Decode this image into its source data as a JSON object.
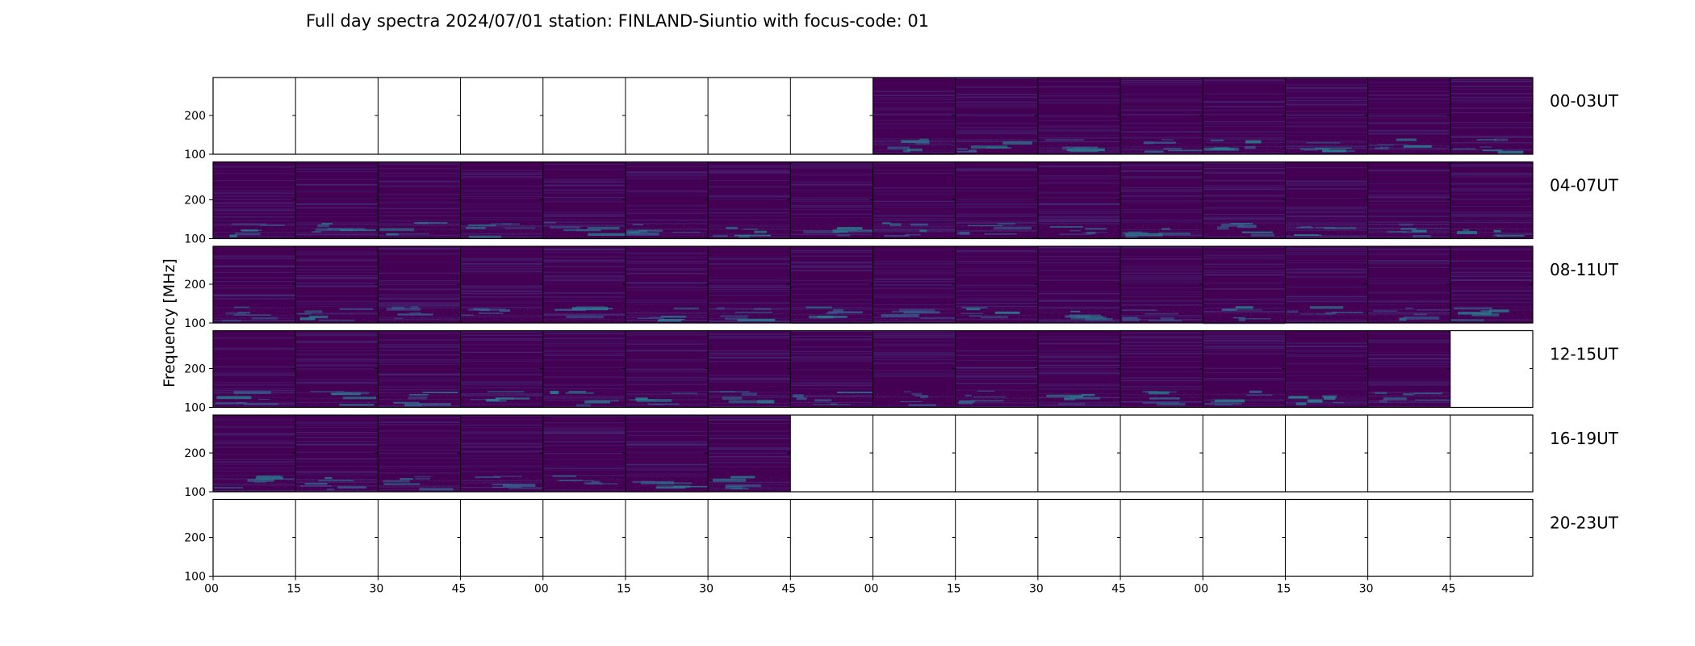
{
  "chart_data": {
    "type": "heatmap",
    "title": "Full day spectra 2024/07/01 station: FINLAND-Siuntio with focus-code: 01",
    "ylabel": "Frequency [MHz]",
    "y_ticks": [
      "200",
      "100"
    ],
    "x_ticks": [
      "00",
      "15",
      "30",
      "45",
      "00",
      "15",
      "30",
      "45",
      "00",
      "15",
      "30",
      "45",
      "00",
      "15",
      "30",
      "45"
    ],
    "colormap": [
      "#440154",
      "#46337e",
      "#365c8d",
      "#277f8e",
      "#1fa187",
      "#4ac16d"
    ],
    "panels_per_row": 16,
    "rows": [
      {
        "label": "00-03UT",
        "present": [
          0,
          0,
          0,
          0,
          0,
          0,
          0,
          0,
          1,
          1,
          1,
          1,
          1,
          1,
          1,
          1
        ]
      },
      {
        "label": "04-07UT",
        "present": [
          1,
          1,
          1,
          1,
          1,
          1,
          1,
          1,
          1,
          1,
          1,
          1,
          1,
          1,
          1,
          1
        ]
      },
      {
        "label": "08-11UT",
        "present": [
          1,
          1,
          1,
          1,
          1,
          1,
          1,
          1,
          1,
          1,
          1,
          1,
          1,
          1,
          1,
          1
        ]
      },
      {
        "label": "12-15UT",
        "present": [
          1,
          1,
          1,
          1,
          1,
          1,
          1,
          1,
          1,
          1,
          1,
          1,
          1,
          1,
          1,
          0
        ]
      },
      {
        "label": "16-19UT",
        "present": [
          1,
          1,
          1,
          1,
          1,
          1,
          1,
          0,
          0,
          0,
          0,
          0,
          0,
          0,
          0,
          0
        ]
      },
      {
        "label": "20-23UT",
        "present": [
          0,
          0,
          0,
          0,
          0,
          0,
          0,
          0,
          0,
          0,
          0,
          0,
          0,
          0,
          0,
          0
        ]
      }
    ]
  }
}
